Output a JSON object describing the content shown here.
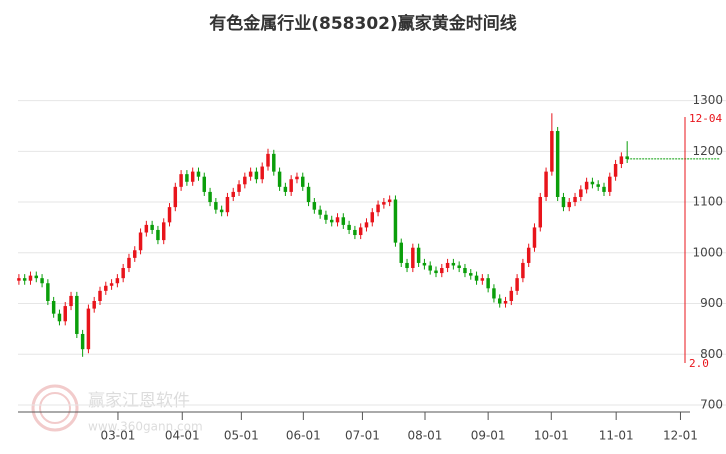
{
  "chart_data": {
    "type": "candlestick",
    "title": "有色金属行业(858302)赢家黄金时间线",
    "open": [
      945,
      950,
      945,
      955,
      950,
      940,
      905,
      880,
      865,
      895,
      915,
      840,
      810,
      890,
      905,
      925,
      935,
      940,
      950,
      970,
      990,
      1005,
      1040,
      1055,
      1045,
      1025,
      1060,
      1090,
      1130,
      1155,
      1140,
      1160,
      1150,
      1120,
      1100,
      1085,
      1080,
      1110,
      1120,
      1135,
      1150,
      1160,
      1145,
      1170,
      1195,
      1160,
      1130,
      1120,
      1145,
      1150,
      1130,
      1100,
      1085,
      1075,
      1065,
      1060,
      1070,
      1055,
      1045,
      1035,
      1050,
      1060,
      1080,
      1095,
      1100,
      1105,
      1020,
      980,
      970,
      1010,
      980,
      975,
      965,
      960,
      970,
      980,
      975,
      970,
      960,
      955,
      945,
      950,
      930,
      910,
      900,
      905,
      925,
      950,
      980,
      1010,
      1050,
      1110,
      1160,
      1240,
      1110,
      1090,
      1100,
      1110,
      1125,
      1140,
      1135,
      1130,
      1120,
      1150,
      1175,
      1190
    ],
    "high": [
      958,
      958,
      963,
      963,
      958,
      948,
      913,
      888,
      903,
      923,
      923,
      848,
      898,
      913,
      933,
      943,
      948,
      958,
      978,
      998,
      1013,
      1048,
      1063,
      1063,
      1053,
      1068,
      1098,
      1138,
      1163,
      1163,
      1168,
      1168,
      1158,
      1128,
      1108,
      1093,
      1118,
      1128,
      1143,
      1158,
      1168,
      1168,
      1178,
      1205,
      1203,
      1168,
      1138,
      1153,
      1158,
      1158,
      1138,
      1108,
      1093,
      1083,
      1073,
      1078,
      1078,
      1063,
      1053,
      1058,
      1068,
      1088,
      1103,
      1108,
      1113,
      1113,
      1028,
      988,
      1018,
      1018,
      988,
      983,
      973,
      978,
      988,
      988,
      983,
      978,
      968,
      963,
      958,
      958,
      938,
      918,
      913,
      933,
      958,
      988,
      1018,
      1058,
      1118,
      1168,
      1275,
      1248,
      1118,
      1108,
      1118,
      1133,
      1148,
      1148,
      1143,
      1138,
      1158,
      1183,
      1198,
      1220
    ],
    "low": [
      937,
      937,
      937,
      942,
      932,
      897,
      872,
      857,
      857,
      887,
      832,
      795,
      802,
      882,
      897,
      917,
      927,
      932,
      942,
      962,
      982,
      997,
      1032,
      1037,
      1017,
      1017,
      1052,
      1082,
      1122,
      1132,
      1132,
      1142,
      1112,
      1092,
      1077,
      1072,
      1072,
      1102,
      1112,
      1127,
      1142,
      1137,
      1137,
      1162,
      1152,
      1122,
      1112,
      1112,
      1137,
      1122,
      1092,
      1077,
      1067,
      1057,
      1052,
      1052,
      1047,
      1037,
      1027,
      1027,
      1042,
      1052,
      1072,
      1087,
      1092,
      1012,
      972,
      962,
      962,
      972,
      967,
      957,
      952,
      952,
      962,
      967,
      962,
      952,
      947,
      937,
      937,
      922,
      902,
      892,
      892,
      897,
      917,
      942,
      972,
      1002,
      1042,
      1102,
      1152,
      1102,
      1082,
      1082,
      1092,
      1102,
      1117,
      1127,
      1122,
      1112,
      1112,
      1142,
      1167,
      1177
    ],
    "close": [
      950,
      945,
      955,
      950,
      940,
      905,
      880,
      865,
      895,
      915,
      840,
      810,
      890,
      905,
      925,
      935,
      940,
      950,
      970,
      990,
      1005,
      1040,
      1055,
      1045,
      1025,
      1060,
      1090,
      1130,
      1155,
      1140,
      1160,
      1150,
      1120,
      1100,
      1085,
      1080,
      1110,
      1120,
      1135,
      1150,
      1160,
      1145,
      1170,
      1195,
      1160,
      1130,
      1120,
      1145,
      1150,
      1130,
      1100,
      1085,
      1075,
      1065,
      1060,
      1070,
      1055,
      1045,
      1035,
      1050,
      1060,
      1080,
      1095,
      1100,
      1105,
      1020,
      980,
      970,
      1010,
      980,
      975,
      965,
      960,
      970,
      980,
      975,
      970,
      960,
      955,
      945,
      950,
      930,
      910,
      900,
      905,
      925,
      950,
      980,
      1010,
      1050,
      1110,
      1160,
      1240,
      1110,
      1090,
      1100,
      1110,
      1125,
      1140,
      1135,
      1130,
      1120,
      1150,
      1175,
      1190,
      1185
    ],
    "up_color": "#e8141b",
    "down_color": "#0a9e0a",
    "xlim": [
      -0.5,
      115.5
    ],
    "xticks": [
      {
        "value": 17.1,
        "label": "03-01"
      },
      {
        "value": 28.2,
        "label": "04-01"
      },
      {
        "value": 38.4,
        "label": "05-01"
      },
      {
        "value": 49.1,
        "label": "06-01"
      },
      {
        "value": 59.3,
        "label": "07-01"
      },
      {
        "value": 70.1,
        "label": "08-01"
      },
      {
        "value": 81.0,
        "label": "09-01"
      },
      {
        "value": 91.9,
        "label": "10-01"
      },
      {
        "value": 103.1,
        "label": "11-01"
      },
      {
        "value": 114.2,
        "label": "12-01"
      }
    ],
    "ylim": [
      700,
      1380
    ],
    "yticks": [
      700,
      800,
      900,
      1000,
      1100,
      1200,
      1300
    ],
    "grid": true,
    "time_line": {
      "label": "12-04",
      "bottom_label": "2.0",
      "color": "#e8141b"
    },
    "watermark": {
      "name": "赢家江恩软件",
      "url": "www.360gann.com"
    }
  }
}
